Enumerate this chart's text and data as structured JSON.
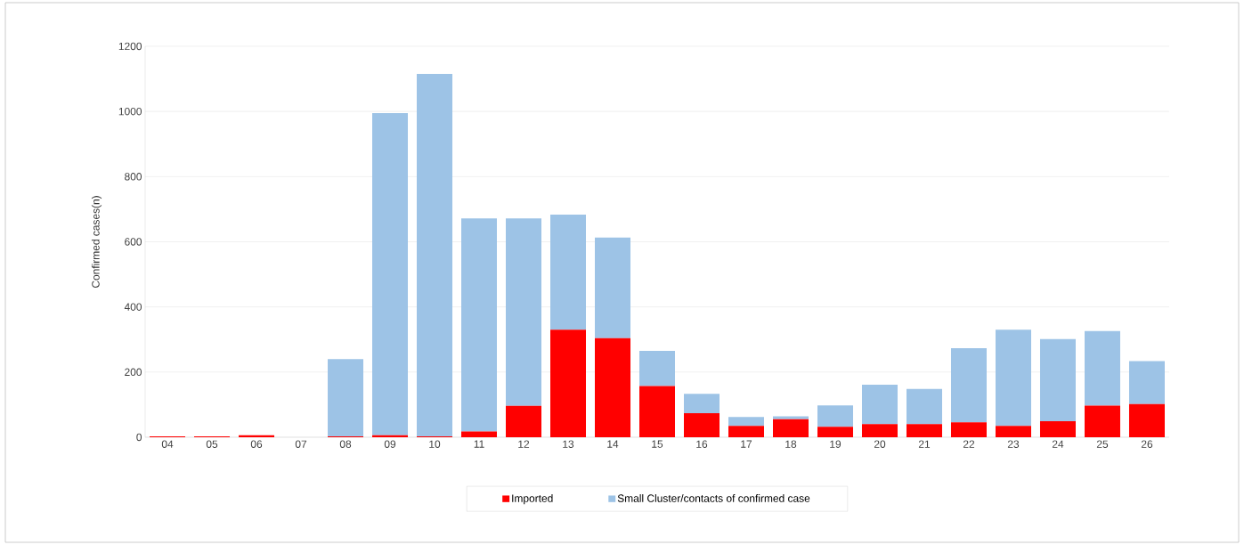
{
  "chart_data": {
    "type": "bar",
    "stacked": true,
    "ylabel": "Confirmed cases(n)",
    "categories": [
      "04",
      "05",
      "06",
      "07",
      "08",
      "09",
      "10",
      "11",
      "12",
      "13",
      "14",
      "15",
      "16",
      "17",
      "18",
      "19",
      "20",
      "21",
      "22",
      "23",
      "24",
      "25",
      "26"
    ],
    "series": [
      {
        "name": "Imported",
        "color": "#ff0000",
        "values": [
          3,
          3,
          6,
          0,
          3,
          6,
          3,
          18,
          96,
          330,
          304,
          157,
          74,
          35,
          55,
          32,
          40,
          40,
          46,
          35,
          49,
          97,
          102
        ]
      },
      {
        "name": "Small Cluster/contacts of confirmed case",
        "color": "#9dc3e6",
        "values": [
          0,
          0,
          0,
          0,
          237,
          989,
          1112,
          654,
          576,
          353,
          309,
          108,
          59,
          27,
          9,
          66,
          121,
          108,
          227,
          295,
          252,
          229,
          132
        ]
      }
    ],
    "ylim": [
      0,
      1200
    ],
    "yticks": [
      0,
      200,
      400,
      600,
      800,
      1000,
      1200
    ],
    "grid": "y",
    "legend": "bottom"
  }
}
